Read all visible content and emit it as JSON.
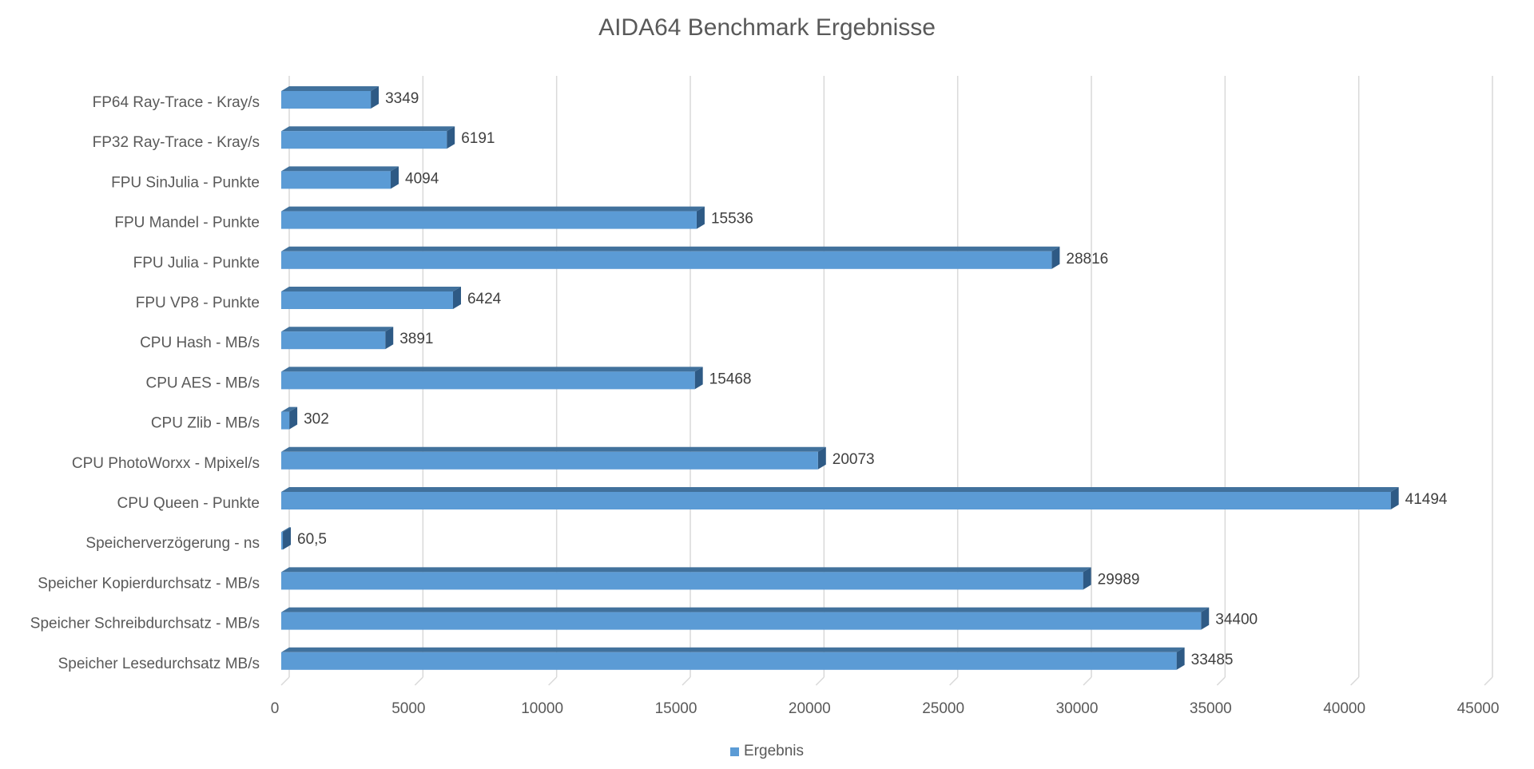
{
  "chart_data": {
    "type": "bar",
    "orientation": "horizontal",
    "title": "AIDA64 Benchmark Ergebnisse",
    "categories": [
      "FP64 Ray-Trace - Kray/s",
      "FP32 Ray-Trace - Kray/s",
      "FPU SinJulia - Punkte",
      "FPU Mandel - Punkte",
      "FPU Julia - Punkte",
      "FPU VP8 - Punkte",
      "CPU Hash - MB/s",
      "CPU AES - MB/s",
      "CPU Zlib - MB/s",
      "CPU PhotoWorxx - Mpixel/s",
      "CPU Queen - Punkte",
      "Speicherverzögerung - ns",
      "Speicher Kopierdurchsatz - MB/s",
      "Speicher Schreibdurchsatz - MB/s",
      "Speicher Lesedurchsatz MB/s"
    ],
    "series": [
      {
        "name": "Ergebnis",
        "values": [
          3349,
          6191,
          4094,
          15536,
          28816,
          6424,
          3891,
          15468,
          302,
          20073,
          41494,
          60.5,
          29989,
          34400,
          33485
        ],
        "labels": [
          "3349",
          "6191",
          "4094",
          "15536",
          "28816",
          "6424",
          "3891",
          "15468",
          "302",
          "20073",
          "41494",
          "60,5",
          "29989",
          "34400",
          "33485"
        ]
      }
    ],
    "xlim": [
      0,
      45000
    ],
    "ticks": [
      "0",
      "5000",
      "10000",
      "15000",
      "20000",
      "25000",
      "30000",
      "35000",
      "40000",
      "45000"
    ],
    "tick_values": [
      0,
      5000,
      10000,
      15000,
      20000,
      25000,
      30000,
      35000,
      40000,
      45000
    ],
    "grid": true,
    "legend_position": "bottom",
    "colors": {
      "bar_front": "#5b9bd5",
      "bar_top": "#41719c",
      "bar_side": "#2e5a85",
      "grid": "#d9d9d9",
      "text": "#595959"
    }
  }
}
